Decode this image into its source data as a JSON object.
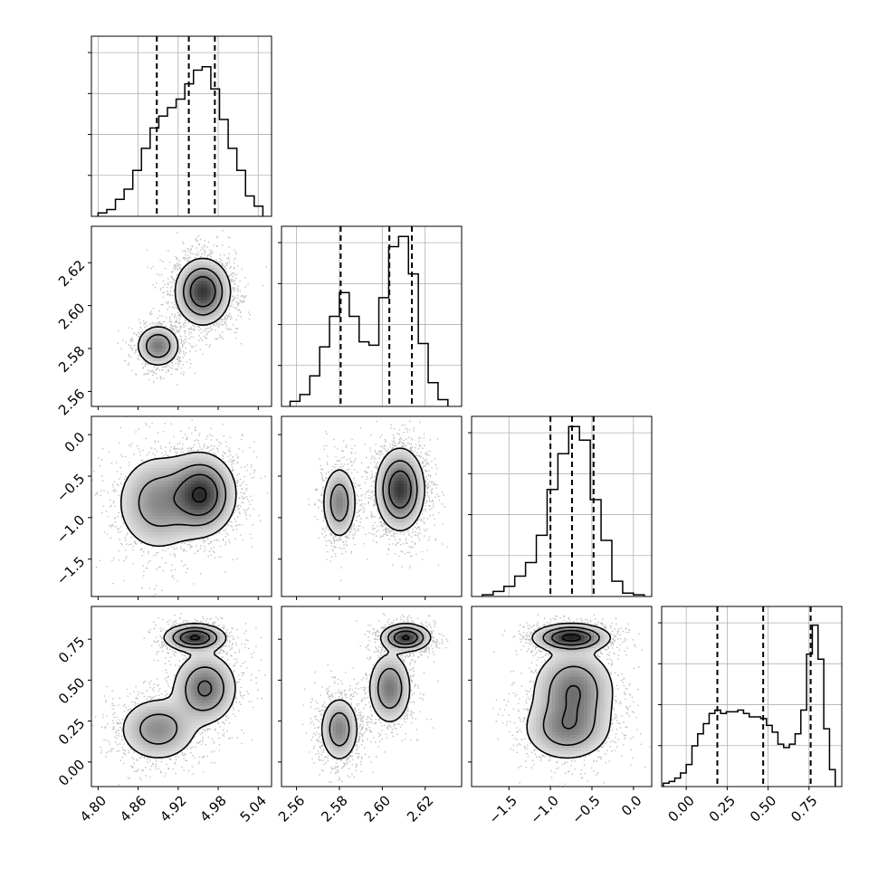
{
  "chart_data": {
    "type": "corner",
    "parameters": [
      {
        "key": "p0",
        "range": [
          4.79,
          5.06
        ],
        "ticks": [
          4.8,
          4.86,
          4.92,
          4.98,
          5.04
        ],
        "tick_labels": [
          "4.80",
          "4.86",
          "4.92",
          "4.98",
          "5.04"
        ],
        "quantiles": [
          4.888,
          4.936,
          4.975
        ],
        "histogram": {
          "edges": [
            4.8,
            4.813,
            4.826,
            4.839,
            4.852,
            4.865,
            4.878,
            4.891,
            4.904,
            4.917,
            4.93,
            4.943,
            4.956,
            4.969,
            4.982,
            4.995,
            5.008,
            5.021,
            5.034,
            5.047
          ],
          "counts": [
            0.02,
            0.04,
            0.1,
            0.16,
            0.27,
            0.4,
            0.52,
            0.59,
            0.64,
            0.69,
            0.78,
            0.86,
            0.88,
            0.75,
            0.57,
            0.4,
            0.27,
            0.12,
            0.06
          ]
        }
      },
      {
        "key": "p1",
        "range": [
          2.553,
          2.637
        ],
        "ticks": [
          2.56,
          2.58,
          2.6,
          2.62
        ],
        "tick_labels": [
          "2.56",
          "2.58",
          "2.60",
          "2.62"
        ],
        "quantiles": [
          2.5806,
          2.6033,
          2.6138
        ],
        "histogram": {
          "edges": [
            2.557,
            2.5616,
            2.5662,
            2.5708,
            2.5754,
            2.58,
            2.5846,
            2.5892,
            2.5938,
            2.5984,
            2.603,
            2.6076,
            2.6122,
            2.6168,
            2.6214,
            2.626,
            2.6306
          ],
          "counts": [
            0.03,
            0.07,
            0.18,
            0.35,
            0.53,
            0.67,
            0.53,
            0.38,
            0.36,
            0.64,
            0.94,
            1.0,
            0.78,
            0.37,
            0.14,
            0.04
          ]
        }
      },
      {
        "key": "p2",
        "range": [
          -1.95,
          0.22
        ],
        "ticks": [
          -1.5,
          -1.0,
          -0.5,
          0.0
        ],
        "tick_labels": [
          "−1.5",
          "−1.0",
          "−0.5",
          "0.0"
        ],
        "quantiles": [
          -1.0,
          -0.74,
          -0.48
        ],
        "histogram": {
          "edges": [
            -1.82,
            -1.69,
            -1.56,
            -1.43,
            -1.3,
            -1.17,
            -1.04,
            -0.91,
            -0.78,
            -0.65,
            -0.52,
            -0.39,
            -0.26,
            -0.13,
            0.0,
            0.13
          ],
          "counts": [
            0.01,
            0.03,
            0.06,
            0.12,
            0.2,
            0.36,
            0.63,
            0.84,
            1.0,
            0.92,
            0.57,
            0.33,
            0.09,
            0.02,
            0.01
          ]
        }
      },
      {
        "key": "p3",
        "range": [
          -0.15,
          0.95
        ],
        "ticks": [
          0.0,
          0.25,
          0.5,
          0.75
        ],
        "tick_labels": [
          "0.00",
          "0.25",
          "0.50",
          "0.75"
        ],
        "quantiles": [
          0.19,
          0.47,
          0.76
        ],
        "histogram": {
          "edges": [
            -0.14,
            -0.105,
            -0.07,
            -0.035,
            0.0,
            0.035,
            0.07,
            0.105,
            0.14,
            0.175,
            0.21,
            0.245,
            0.28,
            0.315,
            0.35,
            0.385,
            0.42,
            0.455,
            0.49,
            0.525,
            0.56,
            0.595,
            0.63,
            0.665,
            0.7,
            0.735,
            0.77,
            0.805,
            0.84,
            0.875,
            0.91
          ],
          "counts": [
            0.02,
            0.03,
            0.05,
            0.08,
            0.13,
            0.24,
            0.31,
            0.37,
            0.43,
            0.45,
            0.43,
            0.44,
            0.44,
            0.45,
            0.43,
            0.41,
            0.41,
            0.4,
            0.36,
            0.32,
            0.25,
            0.23,
            0.25,
            0.31,
            0.45,
            0.78,
            0.95,
            0.75,
            0.34,
            0.1
          ]
        }
      }
    ],
    "pair_modes": [
      {
        "row": 1,
        "col": 0,
        "modes": [
          {
            "mean": [
              4.957,
              2.6065
            ],
            "sd": [
              0.02,
              0.0075
            ],
            "w": 0.73,
            "peak": 0.85
          },
          {
            "mean": [
              4.89,
              2.5812
            ],
            "sd": [
              0.016,
              0.0048
            ],
            "w": 0.27,
            "peak": 0.55
          }
        ]
      },
      {
        "row": 2,
        "col": 0,
        "modes": [
          {
            "mean": [
              4.955,
              -0.72
            ],
            "sd": [
              0.025,
              0.24
            ],
            "w": 0.65,
            "peak": 0.85
          },
          {
            "mean": [
              4.89,
              -0.82
            ],
            "sd": [
              0.032,
              0.3
            ],
            "w": 0.35,
            "peak": 0.45
          }
        ]
      },
      {
        "row": 2,
        "col": 1,
        "modes": [
          {
            "mean": [
              2.6083,
              -0.66
            ],
            "sd": [
              0.0055,
              0.24
            ],
            "w": 0.7,
            "peak": 0.85
          },
          {
            "mean": [
              2.58,
              -0.82
            ],
            "sd": [
              0.004,
              0.22
            ],
            "w": 0.3,
            "peak": 0.5
          }
        ]
      },
      {
        "row": 3,
        "col": 0,
        "modes": [
          {
            "mean": [
              4.945,
              0.76
            ],
            "sd": [
              0.022,
              0.04
            ],
            "w": 0.38,
            "peak": 0.9
          },
          {
            "mean": [
              4.96,
              0.45
            ],
            "sd": [
              0.024,
              0.11
            ],
            "w": 0.26,
            "peak": 0.6
          },
          {
            "mean": [
              4.89,
              0.2
            ],
            "sd": [
              0.03,
              0.1
            ],
            "w": 0.36,
            "peak": 0.45
          }
        ]
      },
      {
        "row": 3,
        "col": 1,
        "modes": [
          {
            "mean": [
              2.611,
              0.76
            ],
            "sd": [
              0.0055,
              0.04
            ],
            "w": 0.38,
            "peak": 0.9
          },
          {
            "mean": [
              2.6035,
              0.45
            ],
            "sd": [
              0.005,
              0.11
            ],
            "w": 0.26,
            "peak": 0.55
          },
          {
            "mean": [
              2.58,
              0.2
            ],
            "sd": [
              0.0045,
              0.1
            ],
            "w": 0.36,
            "peak": 0.5
          }
        ]
      },
      {
        "row": 3,
        "col": 2,
        "modes": [
          {
            "mean": [
              -0.75,
              0.76
            ],
            "sd": [
              0.22,
              0.04
            ],
            "w": 0.4,
            "peak": 0.95
          },
          {
            "mean": [
              -0.72,
              0.44
            ],
            "sd": [
              0.25,
              0.13
            ],
            "w": 0.32,
            "peak": 0.55
          },
          {
            "mean": [
              -0.8,
              0.2
            ],
            "sd": [
              0.27,
              0.1
            ],
            "w": 0.28,
            "peak": 0.45
          }
        ]
      }
    ],
    "contour_levels": [
      0.1,
      0.3,
      0.55,
      0.85
    ],
    "grid": true
  }
}
